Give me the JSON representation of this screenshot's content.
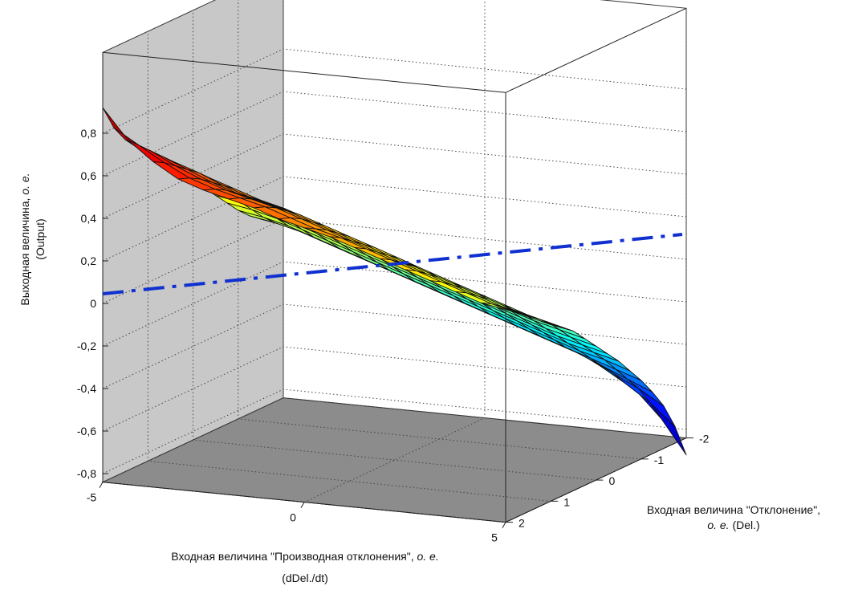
{
  "chart_data": {
    "type": "surface",
    "x_axis": {
      "label_line1": "Входная величина \"Производная отклонения\",",
      "label_italic": "о. е.",
      "label_line2": "(dDel./dt)",
      "range": [
        -5,
        5
      ],
      "ticks": [
        "-5",
        "0",
        "5"
      ]
    },
    "y_axis": {
      "label_line1": "Входная величина \"Отклонение\",",
      "label_italic": "о. е.",
      "label_line2": "(Del.)",
      "range": [
        -2,
        2
      ],
      "ticks": [
        "-2",
        "-1",
        "0",
        "1",
        "2"
      ]
    },
    "z_axis": {
      "label_line1": "Выходная величина,",
      "label_italic": "о. е.",
      "label_line2": "(Output)",
      "range": [
        -0.8,
        0.8
      ],
      "ticks": [
        "0,8",
        "0,6",
        "0,4",
        "0,2",
        "0",
        "-0,2",
        "-0,4",
        "-0,6",
        "-0,8"
      ]
    },
    "grid": true,
    "colormap": "jet",
    "reference_line": {
      "style": "dash-dot",
      "color": "#1030d0"
    },
    "x": [
      -5,
      -4.375,
      -3.75,
      -3.125,
      -2.5,
      -1.875,
      -1.25,
      -0.625,
      0,
      0.625,
      1.25,
      1.875,
      2.5,
      3.125,
      3.75,
      4.375,
      5
    ],
    "y": [
      -2,
      -1.75,
      -1.5,
      -1.25,
      -1,
      -0.75,
      -0.5,
      -0.25,
      0,
      0.25,
      0.5,
      0.75,
      1,
      1.25,
      1.5,
      1.75,
      2
    ],
    "z": [
      [
        0.92,
        0.78,
        0.69,
        0.62,
        0.58,
        0.55,
        0.52,
        0.48,
        0.45,
        0.42,
        0.38,
        0.34,
        0.3,
        0.26,
        0.22,
        0.18,
        0.16
      ],
      [
        0.8,
        0.73,
        0.66,
        0.6,
        0.56,
        0.53,
        0.5,
        0.46,
        0.42,
        0.39,
        0.35,
        0.31,
        0.27,
        0.23,
        0.19,
        0.15,
        0.12
      ],
      [
        0.72,
        0.68,
        0.62,
        0.57,
        0.53,
        0.5,
        0.47,
        0.43,
        0.39,
        0.35,
        0.31,
        0.27,
        0.23,
        0.19,
        0.15,
        0.11,
        0.08
      ],
      [
        0.66,
        0.63,
        0.58,
        0.53,
        0.49,
        0.46,
        0.43,
        0.39,
        0.35,
        0.31,
        0.27,
        0.23,
        0.19,
        0.15,
        0.11,
        0.07,
        0.04
      ],
      [
        0.6,
        0.58,
        0.54,
        0.49,
        0.45,
        0.42,
        0.39,
        0.35,
        0.31,
        0.27,
        0.23,
        0.18,
        0.14,
        0.1,
        0.06,
        0.02,
        -0.01
      ],
      [
        0.55,
        0.53,
        0.49,
        0.45,
        0.41,
        0.38,
        0.34,
        0.3,
        0.26,
        0.22,
        0.18,
        0.14,
        0.1,
        0.06,
        0.02,
        -0.02,
        -0.05
      ],
      [
        0.5,
        0.48,
        0.44,
        0.4,
        0.36,
        0.33,
        0.29,
        0.25,
        0.21,
        0.17,
        0.13,
        0.09,
        0.05,
        0.01,
        -0.03,
        -0.06,
        -0.09
      ],
      [
        0.44,
        0.42,
        0.39,
        0.35,
        0.31,
        0.27,
        0.23,
        0.19,
        0.15,
        0.11,
        0.07,
        0.03,
        -0.01,
        -0.05,
        -0.09,
        -0.12,
        -0.15
      ],
      [
        0.38,
        0.36,
        0.33,
        0.29,
        0.25,
        0.21,
        0.17,
        0.13,
        0.09,
        0.05,
        0.01,
        -0.03,
        -0.07,
        -0.11,
        -0.15,
        -0.18,
        -0.21
      ],
      [
        0.32,
        0.3,
        0.27,
        0.23,
        0.19,
        0.15,
        0.11,
        0.07,
        0.03,
        -0.01,
        -0.05,
        -0.09,
        -0.13,
        -0.17,
        -0.21,
        -0.24,
        -0.27
      ],
      [
        0.26,
        0.24,
        0.21,
        0.17,
        0.13,
        0.09,
        0.05,
        0.01,
        -0.03,
        -0.07,
        -0.11,
        -0.15,
        -0.19,
        -0.23,
        -0.27,
        -0.3,
        -0.33
      ],
      [
        0.2,
        0.18,
        0.15,
        0.11,
        0.07,
        0.03,
        -0.01,
        -0.05,
        -0.09,
        -0.13,
        -0.17,
        -0.21,
        -0.25,
        -0.29,
        -0.33,
        -0.36,
        -0.4
      ],
      [
        0.14,
        0.12,
        0.09,
        0.05,
        0.01,
        -0.03,
        -0.07,
        -0.11,
        -0.15,
        -0.19,
        -0.23,
        -0.27,
        -0.31,
        -0.35,
        -0.39,
        -0.43,
        -0.47
      ],
      [
        0.09,
        0.07,
        0.04,
        0.0,
        -0.04,
        -0.08,
        -0.12,
        -0.16,
        -0.2,
        -0.24,
        -0.28,
        -0.32,
        -0.36,
        -0.4,
        -0.45,
        -0.5,
        -0.55
      ],
      [
        0.05,
        0.03,
        0.0,
        -0.04,
        -0.08,
        -0.12,
        -0.16,
        -0.2,
        -0.24,
        -0.28,
        -0.32,
        -0.36,
        -0.4,
        -0.45,
        -0.51,
        -0.57,
        -0.64
      ],
      [
        0.02,
        0.0,
        -0.03,
        -0.07,
        -0.11,
        -0.15,
        -0.19,
        -0.23,
        -0.27,
        -0.31,
        -0.35,
        -0.4,
        -0.45,
        -0.51,
        -0.58,
        -0.66,
        -0.76
      ],
      [
        0.0,
        -0.02,
        -0.05,
        -0.09,
        -0.13,
        -0.17,
        -0.21,
        -0.25,
        -0.29,
        -0.33,
        -0.38,
        -0.43,
        -0.49,
        -0.56,
        -0.64,
        -0.76,
        -0.92
      ]
    ]
  }
}
